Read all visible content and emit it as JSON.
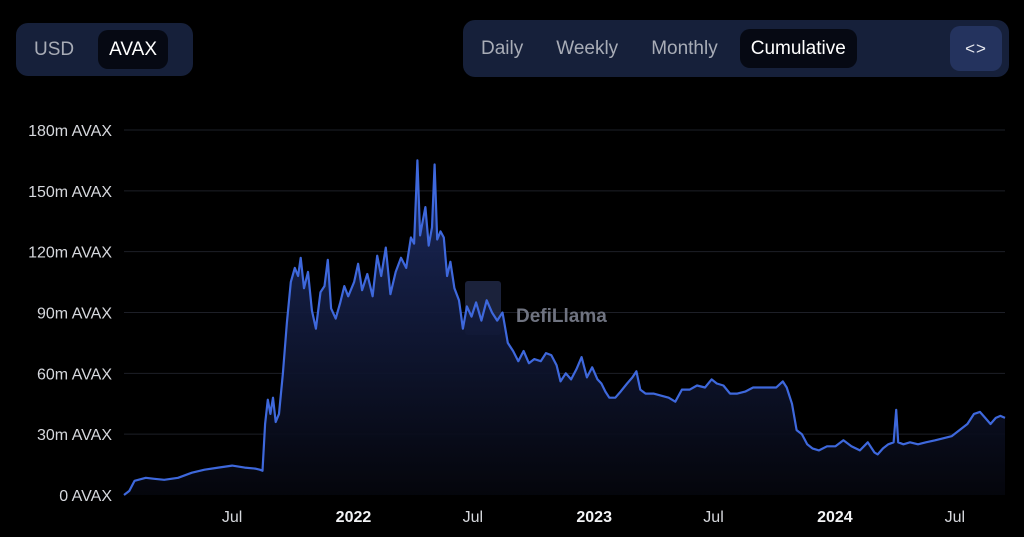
{
  "currency_toggle": {
    "options": [
      "USD",
      "AVAX"
    ],
    "active": "AVAX"
  },
  "interval_toggle": {
    "options": [
      "Daily",
      "Weekly",
      "Monthly",
      "Cumulative"
    ],
    "active": "Cumulative"
  },
  "embed_button": {
    "label": "<>"
  },
  "watermark": "DefiLlama",
  "colors": {
    "line": "#3e68dc",
    "area_top": "#1d2c63",
    "area_bottom": "#05060d",
    "background": "#000000"
  },
  "chart_data": {
    "type": "area",
    "title": "",
    "xlabel": "",
    "ylabel": "",
    "ylim": [
      0,
      180000000
    ],
    "y_ticks": [
      {
        "value": 0,
        "label": "0 AVAX"
      },
      {
        "value": 30000000,
        "label": "30m AVAX"
      },
      {
        "value": 60000000,
        "label": "60m AVAX"
      },
      {
        "value": 90000000,
        "label": "90m AVAX"
      },
      {
        "value": 120000000,
        "label": "120m AVAX"
      },
      {
        "value": 150000000,
        "label": "150m AVAX"
      },
      {
        "value": 180000000,
        "label": "180m AVAX"
      }
    ],
    "xlim": [
      "2021-01-18",
      "2024-09-15"
    ],
    "x_ticks": [
      {
        "date": "2021-07-01",
        "label": "Jul",
        "bold": false
      },
      {
        "date": "2022-01-01",
        "label": "2022",
        "bold": true
      },
      {
        "date": "2022-07-01",
        "label": "Jul",
        "bold": false
      },
      {
        "date": "2023-01-01",
        "label": "2023",
        "bold": true
      },
      {
        "date": "2023-07-01",
        "label": "Jul",
        "bold": false
      },
      {
        "date": "2024-01-01",
        "label": "2024",
        "bold": true
      },
      {
        "date": "2024-07-01",
        "label": "Jul",
        "bold": false
      }
    ],
    "grid": true,
    "legend": "none",
    "series": [
      {
        "unit": "AVAX",
        "points": [
          [
            "2021-01-18",
            0
          ],
          [
            "2021-01-26",
            2000000
          ],
          [
            "2021-02-03",
            7000000
          ],
          [
            "2021-02-20",
            8500000
          ],
          [
            "2021-03-05",
            8000000
          ],
          [
            "2021-03-20",
            7500000
          ],
          [
            "2021-04-10",
            8500000
          ],
          [
            "2021-05-01",
            11000000
          ],
          [
            "2021-05-20",
            12500000
          ],
          [
            "2021-06-10",
            13500000
          ],
          [
            "2021-07-01",
            14500000
          ],
          [
            "2021-07-20",
            13500000
          ],
          [
            "2021-08-05",
            13000000
          ],
          [
            "2021-08-12",
            12500000
          ],
          [
            "2021-08-16",
            12000000
          ],
          [
            "2021-08-20",
            35000000
          ],
          [
            "2021-08-24",
            47000000
          ],
          [
            "2021-08-28",
            40000000
          ],
          [
            "2021-09-01",
            48000000
          ],
          [
            "2021-09-05",
            36000000
          ],
          [
            "2021-09-10",
            40000000
          ],
          [
            "2021-09-16",
            60000000
          ],
          [
            "2021-09-22",
            85000000
          ],
          [
            "2021-09-28",
            105000000
          ],
          [
            "2021-10-04",
            112000000
          ],
          [
            "2021-10-09",
            108000000
          ],
          [
            "2021-10-13",
            117000000
          ],
          [
            "2021-10-18",
            102000000
          ],
          [
            "2021-10-24",
            110000000
          ],
          [
            "2021-10-30",
            91000000
          ],
          [
            "2021-11-05",
            82000000
          ],
          [
            "2021-11-12",
            100000000
          ],
          [
            "2021-11-18",
            103000000
          ],
          [
            "2021-11-23",
            116000000
          ],
          [
            "2021-11-28",
            92000000
          ],
          [
            "2021-12-05",
            87000000
          ],
          [
            "2021-12-12",
            95000000
          ],
          [
            "2021-12-18",
            103000000
          ],
          [
            "2021-12-24",
            98000000
          ],
          [
            "2022-01-02",
            105000000
          ],
          [
            "2022-01-08",
            114000000
          ],
          [
            "2022-01-14",
            101000000
          ],
          [
            "2022-01-22",
            109000000
          ],
          [
            "2022-01-30",
            98000000
          ],
          [
            "2022-02-06",
            118000000
          ],
          [
            "2022-02-12",
            108000000
          ],
          [
            "2022-02-19",
            122000000
          ],
          [
            "2022-02-26",
            99000000
          ],
          [
            "2022-03-06",
            110000000
          ],
          [
            "2022-03-14",
            117000000
          ],
          [
            "2022-03-22",
            112000000
          ],
          [
            "2022-03-29",
            127000000
          ],
          [
            "2022-04-03",
            124000000
          ],
          [
            "2022-04-08",
            165000000
          ],
          [
            "2022-04-12",
            128000000
          ],
          [
            "2022-04-16",
            135000000
          ],
          [
            "2022-04-20",
            142000000
          ],
          [
            "2022-04-25",
            123000000
          ],
          [
            "2022-04-30",
            132000000
          ],
          [
            "2022-05-04",
            163000000
          ],
          [
            "2022-05-08",
            126000000
          ],
          [
            "2022-05-13",
            130000000
          ],
          [
            "2022-05-18",
            127000000
          ],
          [
            "2022-05-23",
            108000000
          ],
          [
            "2022-05-28",
            115000000
          ],
          [
            "2022-06-03",
            102000000
          ],
          [
            "2022-06-10",
            96000000
          ],
          [
            "2022-06-16",
            82000000
          ],
          [
            "2022-06-22",
            93000000
          ],
          [
            "2022-06-29",
            88000000
          ],
          [
            "2022-07-06",
            95000000
          ],
          [
            "2022-07-14",
            86000000
          ],
          [
            "2022-07-22",
            96000000
          ],
          [
            "2022-07-30",
            90000000
          ],
          [
            "2022-08-07",
            86000000
          ],
          [
            "2022-08-15",
            90000000
          ],
          [
            "2022-08-23",
            75000000
          ],
          [
            "2022-08-31",
            71000000
          ],
          [
            "2022-09-08",
            66000000
          ],
          [
            "2022-09-16",
            71000000
          ],
          [
            "2022-09-24",
            65000000
          ],
          [
            "2022-10-02",
            67000000
          ],
          [
            "2022-10-12",
            66000000
          ],
          [
            "2022-10-20",
            70000000
          ],
          [
            "2022-10-28",
            69000000
          ],
          [
            "2022-11-05",
            64000000
          ],
          [
            "2022-11-11",
            56000000
          ],
          [
            "2022-11-19",
            60000000
          ],
          [
            "2022-11-27",
            57000000
          ],
          [
            "2022-12-05",
            62000000
          ],
          [
            "2022-12-13",
            68000000
          ],
          [
            "2022-12-21",
            58000000
          ],
          [
            "2022-12-29",
            63000000
          ],
          [
            "2023-01-06",
            57000000
          ],
          [
            "2023-01-12",
            55000000
          ],
          [
            "2023-01-18",
            51000000
          ],
          [
            "2023-01-24",
            48000000
          ],
          [
            "2023-02-02",
            48000000
          ],
          [
            "2023-02-10",
            51000000
          ],
          [
            "2023-02-20",
            55000000
          ],
          [
            "2023-02-28",
            58000000
          ],
          [
            "2023-03-06",
            61000000
          ],
          [
            "2023-03-12",
            52000000
          ],
          [
            "2023-03-20",
            50000000
          ],
          [
            "2023-04-01",
            50000000
          ],
          [
            "2023-04-12",
            49000000
          ],
          [
            "2023-04-24",
            48000000
          ],
          [
            "2023-05-04",
            46000000
          ],
          [
            "2023-05-14",
            52000000
          ],
          [
            "2023-05-26",
            52000000
          ],
          [
            "2023-06-06",
            54000000
          ],
          [
            "2023-06-18",
            53000000
          ],
          [
            "2023-06-28",
            57000000
          ],
          [
            "2023-07-06",
            55000000
          ],
          [
            "2023-07-16",
            54000000
          ],
          [
            "2023-07-26",
            50000000
          ],
          [
            "2023-08-06",
            50000000
          ],
          [
            "2023-08-18",
            51000000
          ],
          [
            "2023-08-30",
            53000000
          ],
          [
            "2023-09-10",
            53000000
          ],
          [
            "2023-09-22",
            53000000
          ],
          [
            "2023-10-04",
            53000000
          ],
          [
            "2023-10-14",
            56000000
          ],
          [
            "2023-10-20",
            53000000
          ],
          [
            "2023-10-28",
            45000000
          ],
          [
            "2023-11-04",
            32000000
          ],
          [
            "2023-11-12",
            30000000
          ],
          [
            "2023-11-20",
            25000000
          ],
          [
            "2023-11-28",
            23000000
          ],
          [
            "2023-12-08",
            22000000
          ],
          [
            "2023-12-20",
            24000000
          ],
          [
            "2024-01-02",
            24000000
          ],
          [
            "2024-01-14",
            27000000
          ],
          [
            "2024-01-26",
            24000000
          ],
          [
            "2024-02-08",
            22000000
          ],
          [
            "2024-02-20",
            26000000
          ],
          [
            "2024-03-01",
            21000000
          ],
          [
            "2024-03-06",
            20000000
          ],
          [
            "2024-03-14",
            23000000
          ],
          [
            "2024-03-22",
            25000000
          ],
          [
            "2024-03-30",
            26000000
          ],
          [
            "2024-04-03",
            42000000
          ],
          [
            "2024-04-06",
            26000000
          ],
          [
            "2024-04-14",
            25000000
          ],
          [
            "2024-04-24",
            26000000
          ],
          [
            "2024-05-06",
            25000000
          ],
          [
            "2024-05-18",
            26000000
          ],
          [
            "2024-06-01",
            27000000
          ],
          [
            "2024-06-14",
            28000000
          ],
          [
            "2024-06-26",
            29000000
          ],
          [
            "2024-07-08",
            32000000
          ],
          [
            "2024-07-20",
            35000000
          ],
          [
            "2024-07-30",
            40000000
          ],
          [
            "2024-08-08",
            41000000
          ],
          [
            "2024-08-16",
            38000000
          ],
          [
            "2024-08-24",
            35000000
          ],
          [
            "2024-09-01",
            38000000
          ],
          [
            "2024-09-08",
            39000000
          ],
          [
            "2024-09-15",
            38000000
          ]
        ]
      }
    ]
  }
}
